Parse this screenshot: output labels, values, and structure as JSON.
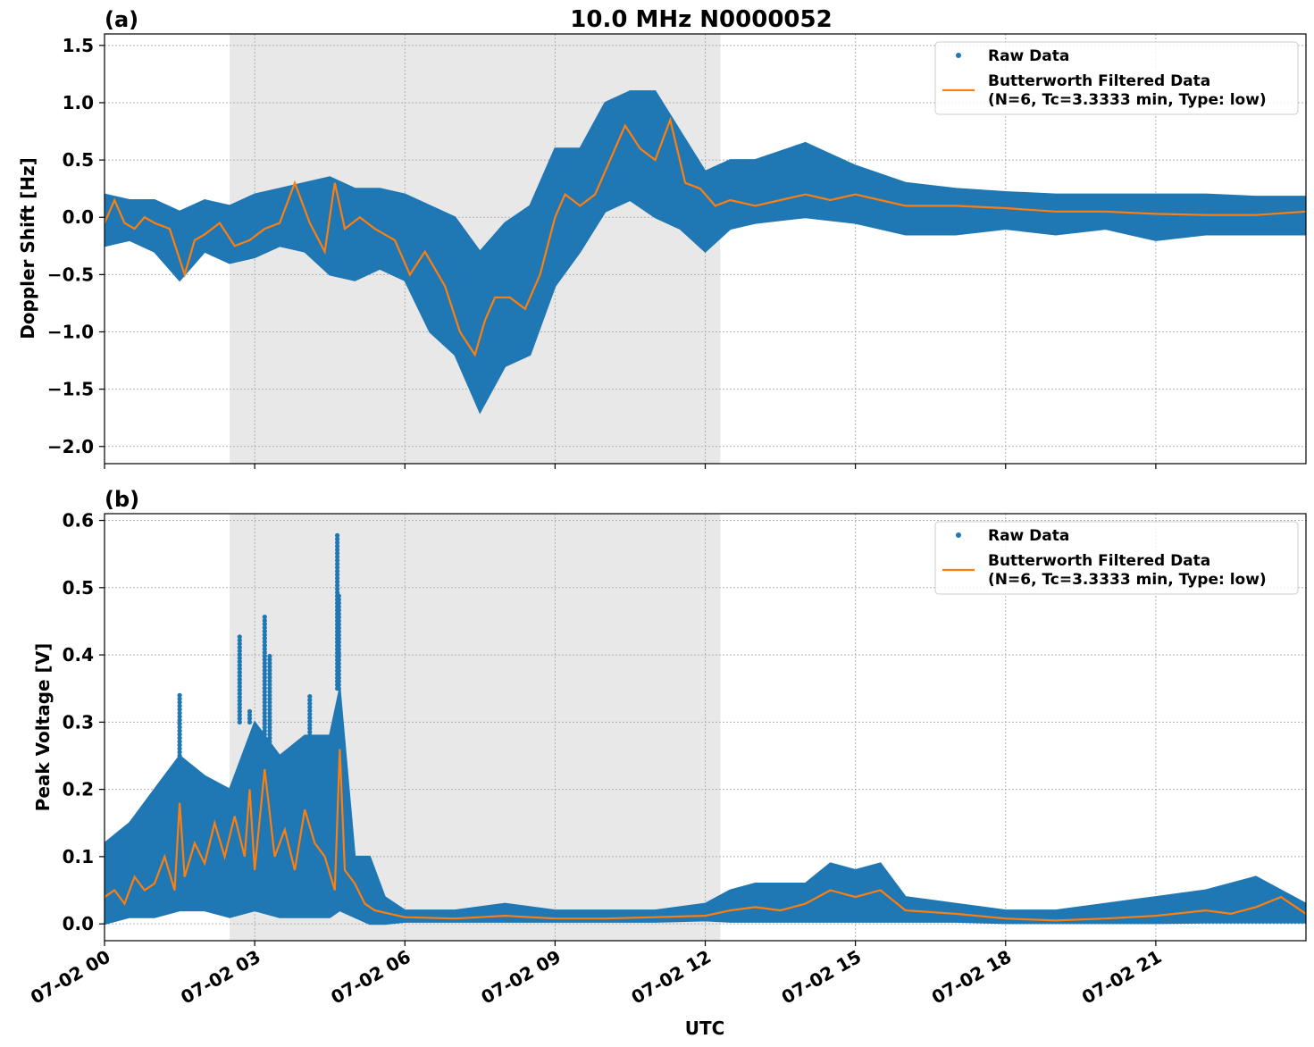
{
  "chart_data": [
    {
      "type": "scatter",
      "panel_label": "(a)",
      "title": "10.0 MHz N0000052",
      "xlabel": "",
      "ylabel": "Doppler Shift [Hz]",
      "ylim": [
        -2.15,
        1.6
      ],
      "yticks": [
        -2.0,
        -1.5,
        -1.0,
        -0.5,
        0.0,
        0.5,
        1.0,
        1.5
      ],
      "ytick_labels": [
        "−2.0",
        "−1.5",
        "−1.0",
        "−0.5",
        "0.0",
        "0.5",
        "1.0",
        "1.5"
      ],
      "xlim_hours": [
        0,
        24
      ],
      "grid": true,
      "shaded_interval_hours": [
        2.5,
        12.3
      ],
      "legend": {
        "placement": "top-right",
        "entries": [
          "Raw Data",
          "Butterworth Filtered Data",
          "(N=6, Tc=3.3333 min, Type: low)"
        ]
      },
      "series": [
        {
          "name": "Raw Data",
          "color": "#1f77b4",
          "envelope_hours": [
            0,
            0.5,
            1,
            1.5,
            2,
            2.5,
            3,
            3.5,
            4,
            4.5,
            5,
            5.5,
            6,
            6.5,
            7,
            7.5,
            8,
            8.5,
            9,
            9.5,
            10,
            10.5,
            11,
            11.5,
            12,
            12.5,
            13,
            14,
            15,
            16,
            17,
            18,
            19,
            20,
            21,
            22,
            23,
            24
          ],
          "envelope_upper": [
            0.2,
            0.15,
            0.15,
            0.05,
            0.15,
            0.1,
            0.2,
            0.25,
            0.3,
            0.35,
            0.25,
            0.25,
            0.2,
            0.1,
            0.0,
            -0.3,
            -0.05,
            0.1,
            0.6,
            0.6,
            1.0,
            1.1,
            1.1,
            0.75,
            0.4,
            0.5,
            0.5,
            0.65,
            0.45,
            0.3,
            0.25,
            0.22,
            0.2,
            0.2,
            0.2,
            0.2,
            0.18,
            0.18
          ],
          "envelope_lower": [
            -0.25,
            -0.2,
            -0.3,
            -0.55,
            -0.3,
            -0.4,
            -0.35,
            -0.25,
            -0.3,
            -0.5,
            -0.55,
            -0.45,
            -0.55,
            -1.0,
            -1.2,
            -1.7,
            -1.3,
            -1.2,
            -0.6,
            -0.3,
            0.05,
            0.15,
            0.0,
            -0.1,
            -0.3,
            -0.1,
            -0.05,
            0.0,
            -0.05,
            -0.15,
            -0.15,
            -0.1,
            -0.15,
            -0.1,
            -0.2,
            -0.15,
            -0.15,
            -0.15
          ]
        },
        {
          "name": "Butterworth Filtered Data",
          "color": "#ff7f0e",
          "x_hours": [
            0,
            0.2,
            0.4,
            0.6,
            0.8,
            1.0,
            1.3,
            1.6,
            1.8,
            2.0,
            2.3,
            2.6,
            2.9,
            3.2,
            3.5,
            3.8,
            4.1,
            4.4,
            4.6,
            4.8,
            5.1,
            5.4,
            5.8,
            6.1,
            6.4,
            6.8,
            7.1,
            7.4,
            7.6,
            7.8,
            8.1,
            8.4,
            8.7,
            9.0,
            9.2,
            9.5,
            9.8,
            10.1,
            10.4,
            10.7,
            11.0,
            11.3,
            11.6,
            11.9,
            12.2,
            12.5,
            13.0,
            13.5,
            14.0,
            14.5,
            15.0,
            15.5,
            16.0,
            17.0,
            18.0,
            19.0,
            20.0,
            21.0,
            22.0,
            23.0,
            24.0
          ],
          "y": [
            -0.05,
            0.15,
            -0.05,
            -0.1,
            0.0,
            -0.05,
            -0.1,
            -0.5,
            -0.2,
            -0.15,
            -0.05,
            -0.25,
            -0.2,
            -0.1,
            -0.05,
            0.3,
            -0.05,
            -0.3,
            0.3,
            -0.1,
            0.0,
            -0.1,
            -0.2,
            -0.5,
            -0.3,
            -0.6,
            -1.0,
            -1.2,
            -0.9,
            -0.7,
            -0.7,
            -0.8,
            -0.5,
            0.0,
            0.2,
            0.1,
            0.2,
            0.5,
            0.8,
            0.6,
            0.5,
            0.85,
            0.3,
            0.25,
            0.1,
            0.15,
            0.1,
            0.15,
            0.2,
            0.15,
            0.2,
            0.15,
            0.1,
            0.1,
            0.08,
            0.05,
            0.05,
            0.03,
            0.02,
            0.02,
            0.05
          ]
        }
      ]
    },
    {
      "type": "scatter",
      "panel_label": "(b)",
      "title": "",
      "xlabel": "UTC",
      "ylabel": "Peak Voltage [V]",
      "ylim": [
        -0.025,
        0.61
      ],
      "yticks": [
        0.0,
        0.1,
        0.2,
        0.3,
        0.4,
        0.5,
        0.6
      ],
      "ytick_labels": [
        "0.0",
        "0.1",
        "0.2",
        "0.3",
        "0.4",
        "0.5",
        "0.6"
      ],
      "xlim_hours": [
        0,
        24
      ],
      "xticks_hours": [
        0,
        3,
        6,
        9,
        12,
        15,
        18,
        21
      ],
      "xtick_labels": [
        "07-02 00",
        "07-02 03",
        "07-02 06",
        "07-02 09",
        "07-02 12",
        "07-02 15",
        "07-02 18",
        "07-02 21"
      ],
      "grid": true,
      "shaded_interval_hours": [
        2.5,
        12.3
      ],
      "legend": {
        "placement": "top-right",
        "entries": [
          "Raw Data",
          "Butterworth Filtered Data",
          "(N=6, Tc=3.3333 min, Type: low)"
        ]
      },
      "series": [
        {
          "name": "Raw Data",
          "color": "#1f77b4",
          "envelope_hours": [
            0,
            0.5,
            1,
            1.5,
            2,
            2.5,
            3,
            3.5,
            4,
            4.5,
            4.7,
            5,
            5.3,
            5.6,
            6,
            7,
            8,
            9,
            10,
            11,
            12,
            12.5,
            13,
            14,
            14.5,
            15,
            15.5,
            16,
            17,
            18,
            19,
            20,
            21,
            22,
            23,
            24
          ],
          "envelope_upper": [
            0.12,
            0.15,
            0.2,
            0.25,
            0.22,
            0.2,
            0.3,
            0.25,
            0.28,
            0.28,
            0.35,
            0.1,
            0.1,
            0.04,
            0.02,
            0.02,
            0.03,
            0.02,
            0.02,
            0.02,
            0.03,
            0.05,
            0.06,
            0.06,
            0.09,
            0.08,
            0.09,
            0.04,
            0.03,
            0.02,
            0.02,
            0.03,
            0.04,
            0.05,
            0.07,
            0.03
          ],
          "envelope_lower": [
            0.0,
            0.01,
            0.01,
            0.02,
            0.02,
            0.01,
            0.02,
            0.01,
            0.01,
            0.01,
            0.02,
            0.01,
            0.0,
            0.0,
            0.003,
            0.003,
            0.003,
            0.003,
            0.003,
            0.003,
            0.005,
            0.003,
            0.003,
            0.003,
            0.003,
            0.003,
            0.003,
            0.003,
            0.003,
            0.001,
            0.001,
            0.001,
            0.001,
            0.002,
            0.002,
            0.002
          ],
          "spike_hours": [
            1.5,
            2.7,
            2.9,
            3.2,
            3.3,
            4.1,
            4.65,
            4.68
          ],
          "spike_values": [
            0.34,
            0.43,
            0.32,
            0.46,
            0.4,
            0.34,
            0.58,
            0.49
          ]
        },
        {
          "name": "Butterworth Filtered Data",
          "color": "#ff7f0e",
          "x_hours": [
            0,
            0.2,
            0.4,
            0.6,
            0.8,
            1.0,
            1.2,
            1.4,
            1.5,
            1.6,
            1.8,
            2.0,
            2.2,
            2.4,
            2.6,
            2.8,
            2.9,
            3.0,
            3.2,
            3.4,
            3.6,
            3.8,
            4.0,
            4.2,
            4.4,
            4.6,
            4.7,
            4.8,
            5.0,
            5.2,
            5.4,
            5.7,
            6.0,
            7.0,
            8.0,
            9.0,
            10.0,
            11.0,
            12.0,
            12.5,
            13.0,
            13.5,
            14.0,
            14.5,
            15.0,
            15.5,
            16.0,
            17.0,
            18.0,
            19.0,
            20.0,
            21.0,
            22.0,
            22.5,
            23.0,
            23.5,
            24.0
          ],
          "y": [
            0.04,
            0.05,
            0.03,
            0.07,
            0.05,
            0.06,
            0.1,
            0.05,
            0.18,
            0.07,
            0.12,
            0.09,
            0.15,
            0.1,
            0.16,
            0.1,
            0.2,
            0.08,
            0.23,
            0.1,
            0.14,
            0.08,
            0.17,
            0.12,
            0.1,
            0.05,
            0.26,
            0.08,
            0.06,
            0.03,
            0.02,
            0.015,
            0.01,
            0.008,
            0.012,
            0.008,
            0.008,
            0.01,
            0.012,
            0.02,
            0.025,
            0.02,
            0.03,
            0.05,
            0.04,
            0.05,
            0.02,
            0.015,
            0.008,
            0.005,
            0.008,
            0.012,
            0.02,
            0.015,
            0.025,
            0.04,
            0.015
          ]
        }
      ]
    }
  ]
}
